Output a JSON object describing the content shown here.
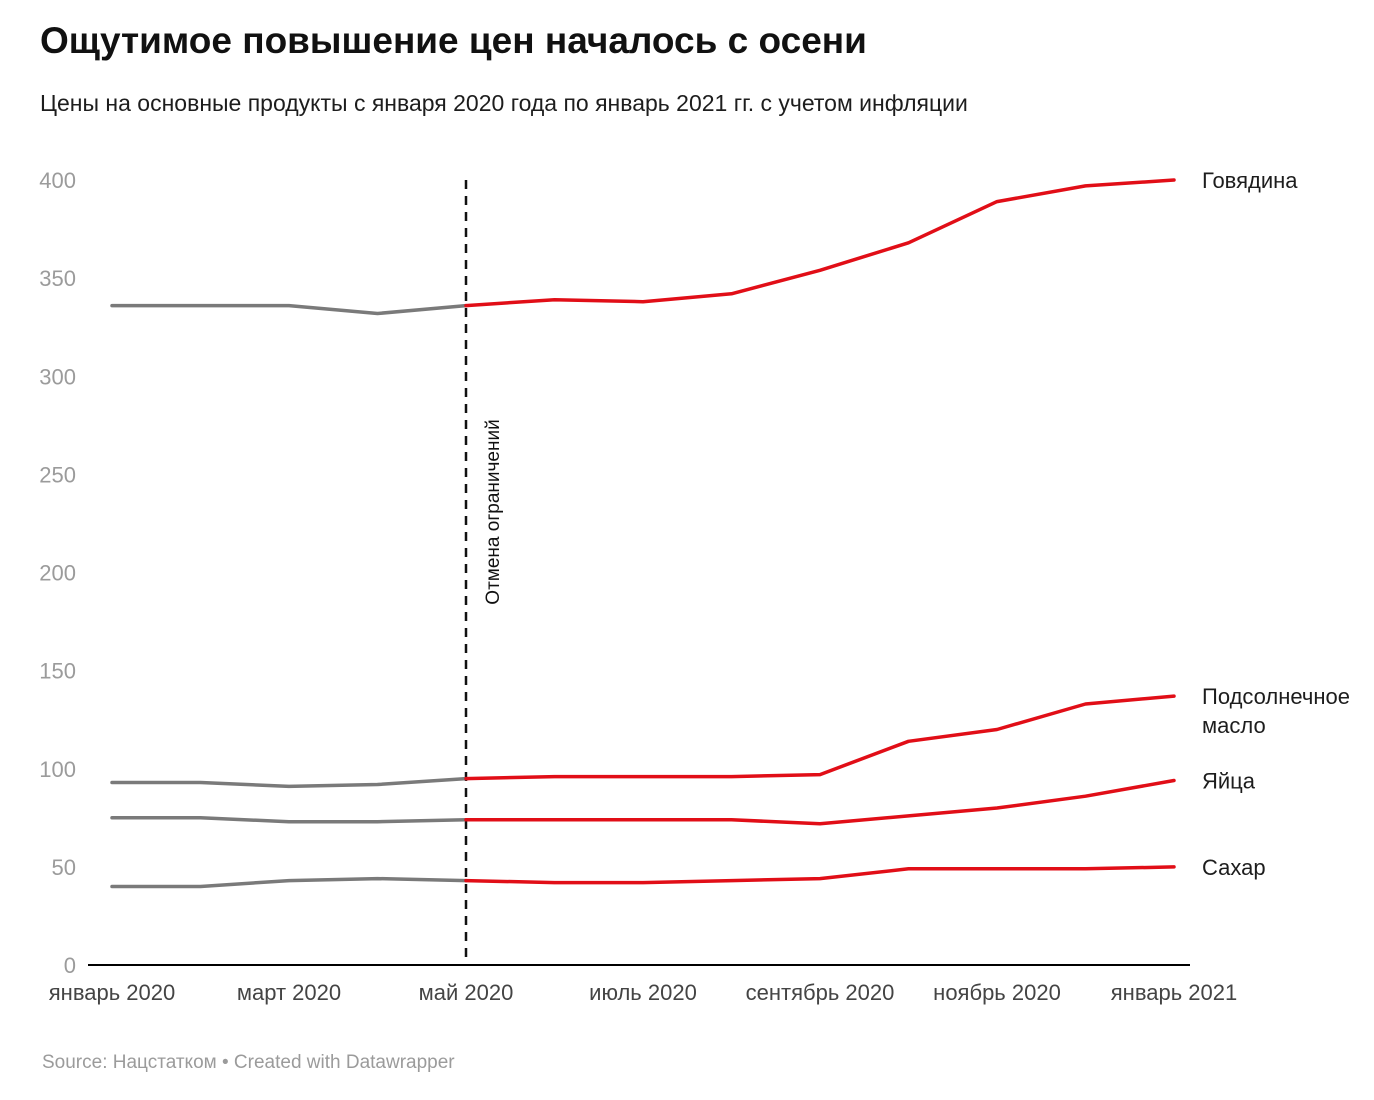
{
  "header": {
    "title": "Ощутимое повышение цен началось с осени",
    "subtitle": "Цены на основные продукты с января 2020 года по январь 2021 гг. с учетом инфляции"
  },
  "footer": {
    "text": "Source: Нацстатком • Created with Datawrapper"
  },
  "colors": {
    "pre_line": "#7a7a7a",
    "post_line": "#e10e17",
    "axis": "#000000",
    "y_tick_text": "#9b9b9b",
    "x_tick_text": "#444444",
    "annotation_line": "#111111",
    "annotation_text": "#111111",
    "series_label_text": "#1d1d1d"
  },
  "annotation": {
    "label": "Отмена ограничений",
    "month_index": 4
  },
  "chart_data": {
    "type": "line",
    "x": [
      "январь 2020",
      "февраль 2020",
      "март 2020",
      "апрель 2020",
      "май 2020",
      "июнь 2020",
      "июль 2020",
      "август 2020",
      "сентябрь 2020",
      "октябрь 2020",
      "ноябрь 2020",
      "декабрь 2020",
      "январь 2021"
    ],
    "x_tick_labels": [
      "январь 2020",
      "март 2020",
      "май 2020",
      "июль 2020",
      "сентябрь 2020",
      "ноябрь 2020",
      "январь 2021"
    ],
    "y_ticks": [
      0,
      50,
      100,
      150,
      200,
      250,
      300,
      350,
      400
    ],
    "ylim": [
      0,
      400
    ],
    "grid": false,
    "legend": "end-of-line-labels",
    "split_month_index": 4,
    "series": [
      {
        "name": "Говядина",
        "label_lines": [
          "Говядина"
        ],
        "values": [
          336,
          336,
          336,
          332,
          336,
          339,
          338,
          342,
          354,
          368,
          389,
          397,
          400
        ]
      },
      {
        "name": "Подсолнечное масло",
        "label_lines": [
          "Подсолнечное",
          "масло"
        ],
        "values": [
          93,
          93,
          91,
          92,
          95,
          96,
          96,
          96,
          97,
          114,
          120,
          133,
          137
        ]
      },
      {
        "name": "Яйца",
        "label_lines": [
          "Яйца"
        ],
        "values": [
          75,
          75,
          73,
          73,
          74,
          74,
          74,
          74,
          72,
          76,
          80,
          86,
          94
        ]
      },
      {
        "name": "Сахар",
        "label_lines": [
          "Сахар"
        ],
        "values": [
          40,
          40,
          43,
          44,
          43,
          42,
          42,
          43,
          44,
          49,
          49,
          49,
          50
        ]
      }
    ]
  }
}
